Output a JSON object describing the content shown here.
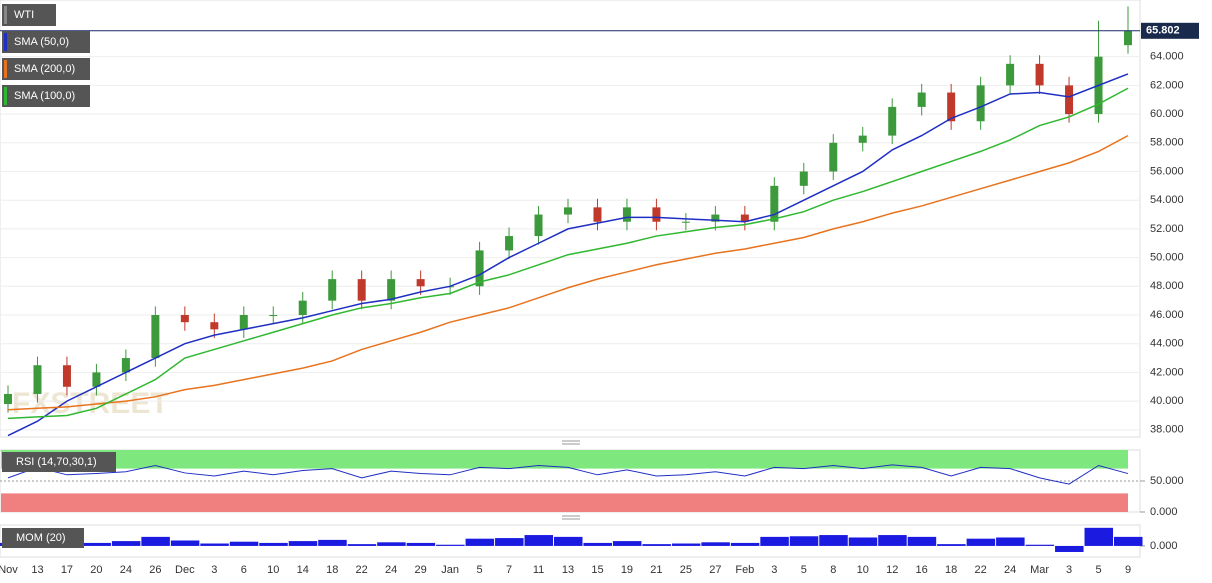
{
  "chart_data": [
    {
      "type": "candlestick",
      "title": "WTI",
      "watermark": "FXSTREET",
      "categories": [
        "Nov",
        "13",
        "17",
        "20",
        "24",
        "26",
        "Dec",
        "3",
        "6",
        "10",
        "14",
        "18",
        "22",
        "24",
        "29",
        "Jan",
        "5",
        "7",
        "11",
        "13",
        "15",
        "19",
        "21",
        "25",
        "27",
        "Feb",
        "3",
        "5",
        "8",
        "10",
        "12",
        "16",
        "18",
        "22",
        "24",
        "Mar",
        "3",
        "5",
        "9"
      ],
      "open": [
        39.8,
        40.5,
        42.5,
        41,
        42,
        43,
        46,
        45.5,
        45,
        46,
        46,
        47,
        48.5,
        47,
        48.5,
        48,
        48,
        50.5,
        51.5,
        53,
        53.5,
        52.5,
        53.5,
        52.5,
        52.5,
        53,
        52.5,
        55,
        56,
        58,
        58.5,
        60.5,
        61.5,
        59.5,
        62,
        63.5,
        62,
        60,
        64.8
      ],
      "high": [
        41.1,
        43.1,
        43.1,
        42.6,
        43.6,
        46.6,
        46.6,
        46.1,
        46.6,
        46.6,
        47.6,
        49.1,
        49.1,
        49.1,
        49.1,
        48.6,
        51.1,
        52.1,
        53.6,
        54.1,
        54.1,
        54.1,
        54.1,
        53.1,
        53.6,
        53.6,
        55.6,
        56.6,
        58.6,
        59.1,
        61.1,
        62.1,
        62.1,
        62.6,
        64.1,
        64.1,
        62.6,
        66.5,
        67.5
      ],
      "low": [
        39.2,
        39.9,
        40.4,
        40.4,
        41.4,
        42.4,
        44.9,
        44.4,
        44.4,
        45.4,
        45.4,
        46.4,
        46.4,
        46.4,
        47.4,
        47.4,
        47.4,
        49.9,
        50.9,
        52.4,
        51.9,
        51.9,
        51.9,
        51.9,
        51.9,
        51.9,
        51.9,
        54.4,
        55.4,
        57.4,
        57.9,
        59.9,
        58.9,
        58.9,
        61.4,
        61.4,
        59.4,
        59.4,
        64.2
      ],
      "close": [
        40.5,
        42.5,
        41,
        42,
        43,
        46,
        45.5,
        45,
        46,
        46,
        47,
        48.5,
        47,
        48.5,
        48,
        48,
        50.5,
        51.5,
        53,
        53.5,
        52.5,
        53.5,
        52.5,
        52.5,
        53,
        52.5,
        55,
        56,
        58,
        58.5,
        60.5,
        61.5,
        59.5,
        62,
        63.5,
        62,
        60,
        64,
        65.8
      ],
      "up_color": "#3c9a3c",
      "down_color": "#c0392b",
      "series": [
        {
          "name": "SMA (50,0)",
          "color": "#1f2fc4",
          "values": [
            37.6,
            38.6,
            40,
            41,
            42,
            43,
            44,
            44.6,
            45,
            45.4,
            45.8,
            46.3,
            46.8,
            47.1,
            47.6,
            48,
            48.8,
            50,
            51,
            52,
            52.4,
            52.8,
            52.8,
            52.7,
            52.6,
            52.5,
            53,
            54,
            55,
            56,
            57.5,
            58.5,
            59.7,
            60.5,
            61.4,
            61.5,
            61.2,
            62,
            62.8
          ]
        },
        {
          "name": "SMA (200,0)",
          "color": "#e8731e",
          "values": [
            39.4,
            39.5,
            39.6,
            39.8,
            40,
            40.3,
            40.8,
            41.1,
            41.5,
            41.9,
            42.3,
            42.8,
            43.6,
            44.2,
            44.8,
            45.5,
            46,
            46.5,
            47.2,
            47.9,
            48.5,
            49,
            49.5,
            49.9,
            50.3,
            50.6,
            51,
            51.4,
            52,
            52.5,
            53.1,
            53.6,
            54.2,
            54.8,
            55.4,
            56,
            56.6,
            57.4,
            58.5
          ]
        },
        {
          "name": "SMA (100,0)",
          "color": "#2fb82f",
          "values": [
            38.8,
            38.9,
            39,
            39.5,
            40.5,
            41.5,
            43,
            43.6,
            44.2,
            44.8,
            45.4,
            46,
            46.5,
            46.8,
            47.2,
            47.5,
            48.3,
            48.8,
            49.5,
            50.2,
            50.6,
            51,
            51.5,
            51.8,
            52.1,
            52.3,
            52.7,
            53.2,
            54,
            54.6,
            55.3,
            56,
            56.7,
            57.4,
            58.2,
            59.2,
            59.8,
            60.7,
            61.8
          ]
        }
      ],
      "ylim": [
        37.5,
        67.6
      ],
      "yticks": [
        {
          "value": 38,
          "label": "38.000"
        },
        {
          "value": 40,
          "label": "40.000"
        },
        {
          "value": 42,
          "label": "42.000"
        },
        {
          "value": 44,
          "label": "44.000"
        },
        {
          "value": 46,
          "label": "46.000"
        },
        {
          "value": 48,
          "label": "48.000"
        },
        {
          "value": 50,
          "label": "50.000"
        },
        {
          "value": 52,
          "label": "52.000"
        },
        {
          "value": 54,
          "label": "54.000"
        },
        {
          "value": 56,
          "label": "56.000"
        },
        {
          "value": 58,
          "label": "58.000"
        },
        {
          "value": 60,
          "label": "60.000"
        },
        {
          "value": 62,
          "label": "62.000"
        },
        {
          "value": 64,
          "label": "64.000"
        }
      ],
      "last_price": {
        "value": 65.802,
        "label": "65.802"
      },
      "grid": true
    },
    {
      "type": "line",
      "title": "RSI (14,70,30,1)",
      "color": "#1f2fc4",
      "values": [
        55,
        72,
        60,
        62,
        65,
        75,
        63,
        58,
        66,
        60,
        67,
        70,
        55,
        66,
        62,
        60,
        72,
        70,
        75,
        72,
        60,
        68,
        58,
        60,
        65,
        58,
        72,
        70,
        75,
        70,
        76,
        72,
        58,
        72,
        70,
        55,
        45,
        75,
        62
      ],
      "overbought": 70,
      "oversold": 30,
      "overbought_color": "#7ee87e",
      "oversold_color": "#f08080",
      "ylim": [
        0,
        100
      ],
      "yticks": [
        {
          "value": 50,
          "label": "50.000"
        },
        {
          "value": 0,
          "label": "0.000"
        }
      ]
    },
    {
      "type": "bar",
      "title": "MOM (20)",
      "color": "#1a1ae0",
      "values": [
        0.5,
        1.2,
        0.6,
        0.5,
        0.8,
        1.5,
        0.9,
        0.4,
        0.7,
        0.5,
        0.8,
        1,
        0.3,
        0.6,
        0.5,
        0.2,
        1.2,
        1.3,
        1.8,
        1.5,
        0.5,
        0.8,
        0.3,
        0.4,
        0.6,
        0.5,
        1.5,
        1.6,
        1.8,
        1.4,
        1.8,
        1.5,
        0.3,
        1.2,
        1.4,
        0.2,
        -1,
        3,
        1.5
      ],
      "ylim": [
        -1.5,
        3.3
      ],
      "yticks": [
        {
          "value": 0,
          "label": "0.000"
        }
      ]
    }
  ]
}
